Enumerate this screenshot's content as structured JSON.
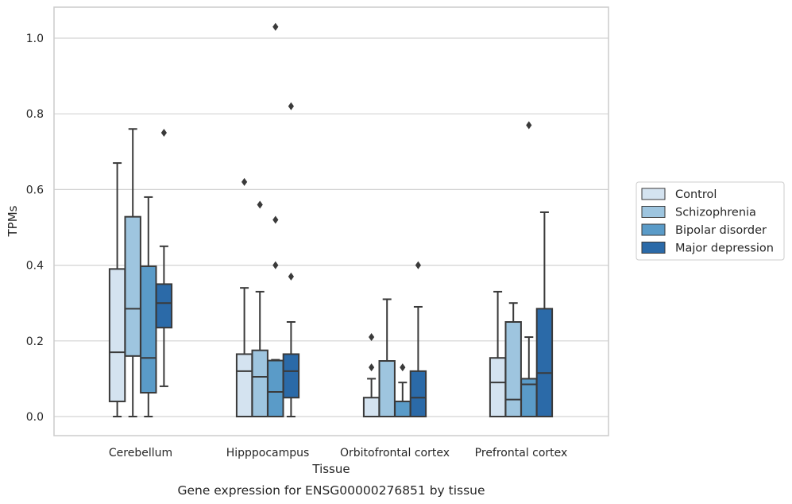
{
  "chart_data": {
    "type": "box",
    "caption": "Gene expression for ENSG00000276851 by tissue",
    "xlabel": "Tissue",
    "ylabel": "TPMs",
    "ylim": [
      -0.05,
      1.08
    ],
    "yticks": [
      "0.0",
      "0.2",
      "0.4",
      "0.6",
      "0.8",
      "1.0"
    ],
    "grid": "horizontal",
    "legend_position": "right",
    "categories": [
      "Cerebellum",
      "Hipppocampus",
      "Orbitofrontal cortex",
      "Prefrontal cortex"
    ],
    "series": [
      {
        "name": "Control",
        "color": "#d4e3f0",
        "boxes": [
          {
            "whislo": 0.0,
            "q1": 0.04,
            "med": 0.17,
            "q3": 0.39,
            "whishi": 0.67,
            "fliers": []
          },
          {
            "whislo": 0.0,
            "q1": 0.0,
            "med": 0.12,
            "q3": 0.165,
            "whishi": 0.34,
            "fliers": [
              0.62
            ]
          },
          {
            "whislo": 0.0,
            "q1": 0.0,
            "med": 0.0,
            "q3": 0.05,
            "whishi": 0.1,
            "fliers": [
              0.13,
              0.21
            ]
          },
          {
            "whislo": 0.0,
            "q1": 0.0,
            "med": 0.09,
            "q3": 0.155,
            "whishi": 0.33,
            "fliers": []
          }
        ]
      },
      {
        "name": "Schizophrenia",
        "color": "#9ec5df",
        "boxes": [
          {
            "whislo": 0.0,
            "q1": 0.16,
            "med": 0.285,
            "q3": 0.528,
            "whishi": 0.76,
            "fliers": []
          },
          {
            "whislo": 0.0,
            "q1": 0.0,
            "med": 0.105,
            "q3": 0.175,
            "whishi": 0.33,
            "fliers": [
              0.56
            ]
          },
          {
            "whislo": 0.0,
            "q1": 0.0,
            "med": 0.0,
            "q3": 0.147,
            "whishi": 0.31,
            "fliers": []
          },
          {
            "whislo": 0.0,
            "q1": 0.0,
            "med": 0.045,
            "q3": 0.25,
            "whishi": 0.3,
            "fliers": []
          }
        ]
      },
      {
        "name": "Bipolar disorder",
        "color": "#5a9bc8",
        "boxes": [
          {
            "whislo": 0.0,
            "q1": 0.063,
            "med": 0.155,
            "q3": 0.397,
            "whishi": 0.58,
            "fliers": []
          },
          {
            "whislo": 0.0,
            "q1": 0.0,
            "med": 0.065,
            "q3": 0.148,
            "whishi": 0.15,
            "fliers": [
              0.4,
              0.52,
              1.03
            ]
          },
          {
            "whislo": 0.0,
            "q1": 0.0,
            "med": 0.0,
            "q3": 0.04,
            "whishi": 0.09,
            "fliers": [
              0.13
            ]
          },
          {
            "whislo": 0.0,
            "q1": 0.0,
            "med": 0.085,
            "q3": 0.1,
            "whishi": 0.21,
            "fliers": [
              0.77
            ]
          }
        ]
      },
      {
        "name": "Major depression",
        "color": "#2b6aa8",
        "boxes": [
          {
            "whislo": 0.08,
            "q1": 0.235,
            "med": 0.3,
            "q3": 0.35,
            "whishi": 0.45,
            "fliers": [
              0.75
            ]
          },
          {
            "whislo": 0.0,
            "q1": 0.05,
            "med": 0.12,
            "q3": 0.165,
            "whishi": 0.25,
            "fliers": [
              0.37,
              0.82
            ]
          },
          {
            "whislo": 0.0,
            "q1": 0.0,
            "med": 0.05,
            "q3": 0.12,
            "whishi": 0.29,
            "fliers": [
              0.4
            ]
          },
          {
            "whislo": 0.0,
            "q1": 0.0,
            "med": 0.115,
            "q3": 0.285,
            "whishi": 0.54,
            "fliers": []
          }
        ]
      }
    ]
  }
}
